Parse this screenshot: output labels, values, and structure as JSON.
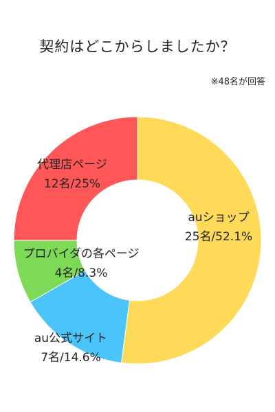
{
  "title": "契約はどこからしましたか？",
  "note": "※48名が回答",
  "chart_data": {
    "type": "pie",
    "donut": true,
    "total": 48,
    "slices": [
      {
        "name": "auショップ",
        "value_text": "25名/52.1%",
        "count": 25,
        "percent": 52.1,
        "color": "#FFD958"
      },
      {
        "name": "au公式サイト",
        "value_text": "7名/14.6%",
        "count": 7,
        "percent": 14.6,
        "color": "#4BC4F9"
      },
      {
        "name": "プロバイダの各ページ",
        "value_text": "4名/8.3%",
        "count": 4,
        "percent": 8.3,
        "color": "#7ED957"
      },
      {
        "name": "代理店ページ",
        "value_text": "12名/25%",
        "count": 12,
        "percent": 25,
        "color": "#FF5757"
      }
    ]
  }
}
